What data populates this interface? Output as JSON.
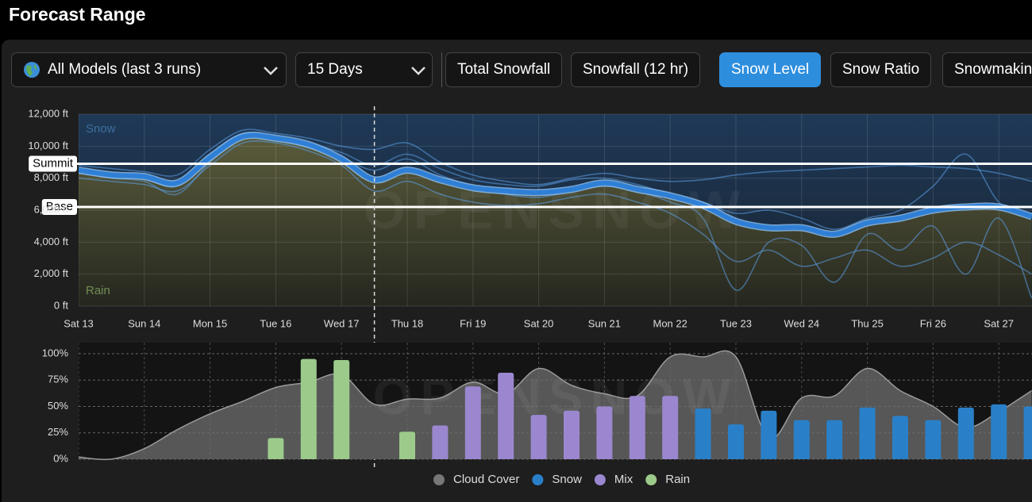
{
  "header": {
    "title": "Forecast Range"
  },
  "controls": {
    "model_select": "All Models (last 3 runs)",
    "days_select": "15 Days",
    "tabs": [
      "Total Snowfall",
      "Snowfall (12 hr)",
      "Snow Level",
      "Snow Ratio",
      "Snowmaking"
    ],
    "active_tab": 2
  },
  "chart_data": [
    {
      "type": "line",
      "watermark": "OPENSNOW",
      "snow_label": "Snow",
      "rain_label": "Rain",
      "xlim": [
        0,
        14.5
      ],
      "xticks": [
        {
          "value": 0,
          "label": "Sat 13"
        },
        {
          "value": 1,
          "label": "Sun 14"
        },
        {
          "value": 2,
          "label": "Mon 15"
        },
        {
          "value": 3,
          "label": "Tue 16"
        },
        {
          "value": 4,
          "label": "Wed 17"
        },
        {
          "value": 5,
          "label": "Thu 18"
        },
        {
          "value": 6,
          "label": "Fri 19"
        },
        {
          "value": 7,
          "label": "Sat 20"
        },
        {
          "value": 8,
          "label": "Sun 21"
        },
        {
          "value": 9,
          "label": "Mon 22"
        },
        {
          "value": 10,
          "label": "Tue 23"
        },
        {
          "value": 11,
          "label": "Wed 24"
        },
        {
          "value": 12,
          "label": "Thu 25"
        },
        {
          "value": 13,
          "label": "Fri 26"
        },
        {
          "value": 14,
          "label": "Sat 27"
        }
      ],
      "ylim": [
        0,
        12000
      ],
      "yticks": [
        {
          "value": 0,
          "label": "0 ft"
        },
        {
          "value": 2000,
          "label": "2,000 ft"
        },
        {
          "value": 4000,
          "label": "4,000 ft"
        },
        {
          "value": 6000,
          "label": "6,000 ft"
        },
        {
          "value": 8000,
          "label": "8,000 ft"
        },
        {
          "value": 10000,
          "label": "10,000 ft"
        },
        {
          "value": 12000,
          "label": "12,000 ft"
        }
      ],
      "grid": true,
      "marker_x": 4.5,
      "reference_lines": [
        {
          "label": "Summit",
          "value": 8900
        },
        {
          "label": "Base",
          "value": 6200
        }
      ],
      "x": [
        0,
        0.5,
        1,
        1.5,
        2,
        2.5,
        3,
        3.5,
        4,
        4.5,
        5,
        5.5,
        6,
        6.5,
        7,
        7.5,
        8,
        8.5,
        9,
        9.5,
        10,
        10.5,
        11,
        11.5,
        12,
        12.5,
        13,
        13.5,
        14,
        14.5
      ],
      "series": [
        {
          "color": "#5b9fe6",
          "values": [
            8800,
            8600,
            8400,
            8200,
            9800,
            11000,
            10800,
            10500,
            10000,
            9800,
            10200,
            9000,
            8200,
            7800,
            7600,
            8000,
            8300,
            8000,
            7800,
            7900,
            8200,
            8400,
            8500,
            8600,
            8700,
            8800,
            8700,
            8600,
            8300,
            7800
          ]
        },
        {
          "color": "#5b9fe6",
          "values": [
            8000,
            7800,
            7600,
            7200,
            8800,
            10200,
            10200,
            9700,
            8800,
            7200,
            7800,
            7000,
            6500,
            6300,
            6400,
            6800,
            7000,
            6500,
            5800,
            4500,
            2800,
            3500,
            2500,
            3000,
            3500,
            2500,
            3000,
            4000,
            3200,
            2000
          ]
        },
        {
          "color": "#5b9fe6",
          "values": [
            8300,
            8000,
            7800,
            7000,
            9000,
            10500,
            10400,
            9900,
            9300,
            8500,
            9200,
            8200,
            7500,
            7000,
            6800,
            7200,
            7500,
            7200,
            6500,
            5500,
            1000,
            4000,
            3800,
            1500,
            4500,
            3500,
            5000,
            2000,
            5500,
            500
          ]
        },
        {
          "color": "#5b9fe6",
          "values": [
            8600,
            8300,
            8000,
            7500,
            9500,
            10800,
            10600,
            10200,
            9600,
            8800,
            9500,
            8600,
            7900,
            7600,
            7500,
            7900,
            8000,
            7600,
            7000,
            6500,
            5800,
            6000,
            5500,
            4800,
            5500,
            6000,
            7500,
            9500,
            6500,
            5500
          ]
        },
        {
          "color": "#2f7fd6",
          "main": true,
          "values": [
            8500,
            8200,
            8100,
            7700,
            9300,
            10600,
            10500,
            10100,
            9200,
            7900,
            8500,
            7900,
            7400,
            7200,
            7100,
            7300,
            7700,
            7300,
            6900,
            6300,
            5300,
            4900,
            4900,
            4500,
            5200,
            5500,
            6000,
            6200,
            6200,
            5600
          ]
        }
      ]
    },
    {
      "type": "bar",
      "watermark": "OPENSNOW",
      "xlim": [
        0,
        14.5
      ],
      "ylim": [
        0,
        100
      ],
      "yticks": [
        {
          "value": 0,
          "label": "0%"
        },
        {
          "value": 25,
          "label": "25%"
        },
        {
          "value": 50,
          "label": "50%"
        },
        {
          "value": 75,
          "label": "75%"
        },
        {
          "value": 100,
          "label": "100%"
        }
      ],
      "grid": true,
      "x": [
        3,
        3.5,
        4,
        5,
        5.5,
        6,
        6.5,
        7,
        7.5,
        8,
        8.5,
        9,
        9.5,
        10,
        10.5,
        11,
        11.5,
        12,
        12.5,
        13,
        13.5,
        14,
        14.5
      ],
      "series": [
        {
          "name": "Cloud Cover",
          "type": "area",
          "color": "#6e6e6e",
          "x": [
            0,
            0.5,
            1,
            1.5,
            2,
            2.5,
            3,
            3.5,
            4,
            4.5,
            5,
            5.5,
            6,
            6.5,
            7,
            7.5,
            8,
            8.5,
            9,
            9.5,
            10,
            10.5,
            11,
            11.5,
            12,
            12.5,
            13,
            13.5,
            14,
            14.5
          ],
          "values": [
            2,
            0,
            10,
            28,
            43,
            55,
            68,
            73,
            80,
            52,
            57,
            58,
            73,
            62,
            86,
            70,
            62,
            60,
            97,
            97,
            97,
            20,
            58,
            60,
            86,
            65,
            50,
            30,
            45,
            65
          ]
        },
        {
          "name": "Snow",
          "color": "#2a80c8",
          "values": [
            null,
            null,
            null,
            null,
            null,
            null,
            null,
            null,
            null,
            null,
            null,
            null,
            48,
            33,
            46,
            37,
            37,
            49,
            41,
            37,
            49,
            52,
            50
          ]
        },
        {
          "name": "Mix",
          "color": "#9b87cf",
          "values": [
            null,
            null,
            null,
            null,
            32,
            69,
            82,
            42,
            46,
            50,
            60,
            60,
            null,
            null,
            null,
            null,
            null,
            null,
            null,
            null,
            null,
            null,
            null
          ]
        },
        {
          "name": "Rain",
          "color": "#9cca8b",
          "values": [
            20,
            95,
            94,
            26,
            null,
            null,
            null,
            null,
            null,
            null,
            null,
            null,
            null,
            null,
            null,
            null,
            null,
            null,
            null,
            null,
            null,
            null,
            null
          ]
        }
      ]
    }
  ]
}
